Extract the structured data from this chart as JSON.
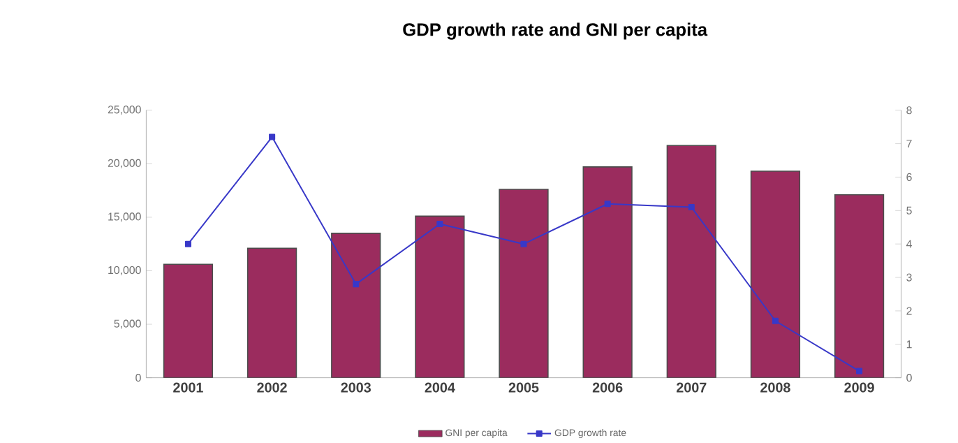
{
  "chart_data": {
    "type": "bar",
    "title": "GDP growth rate and GNI per capita",
    "categories": [
      "2001",
      "2002",
      "2003",
      "2004",
      "2005",
      "2006",
      "2007",
      "2008",
      "2009"
    ],
    "series": [
      {
        "name": "GNI per capita",
        "color": "#9b2c5e",
        "values": [
          10600,
          12100,
          13500,
          15100,
          17600,
          19700,
          21700,
          19300,
          17100
        ]
      },
      {
        "name": "GDP growth rate",
        "type": "line",
        "axis": "y2",
        "color": "#3838c8",
        "values": [
          4.0,
          7.2,
          2.8,
          4.6,
          4.0,
          5.2,
          5.1,
          1.7,
          0.2
        ]
      }
    ],
    "ylim": [
      0,
      25000
    ],
    "yticks": [
      0,
      {
        "value": 5000,
        "label": "5,000"
      },
      {
        "value": 10000,
        "label": "10,000"
      },
      {
        "value": 15000,
        "label": "15,000"
      },
      {
        "value": 20000,
        "label": "20,000"
      },
      {
        "value": 25000,
        "label": "25,000"
      }
    ],
    "y2lim": [
      0,
      8
    ],
    "y2ticks": [
      0,
      1,
      2,
      3,
      4,
      5,
      6,
      7,
      8
    ],
    "marker": "square",
    "grid": false,
    "legend": "bottom"
  }
}
